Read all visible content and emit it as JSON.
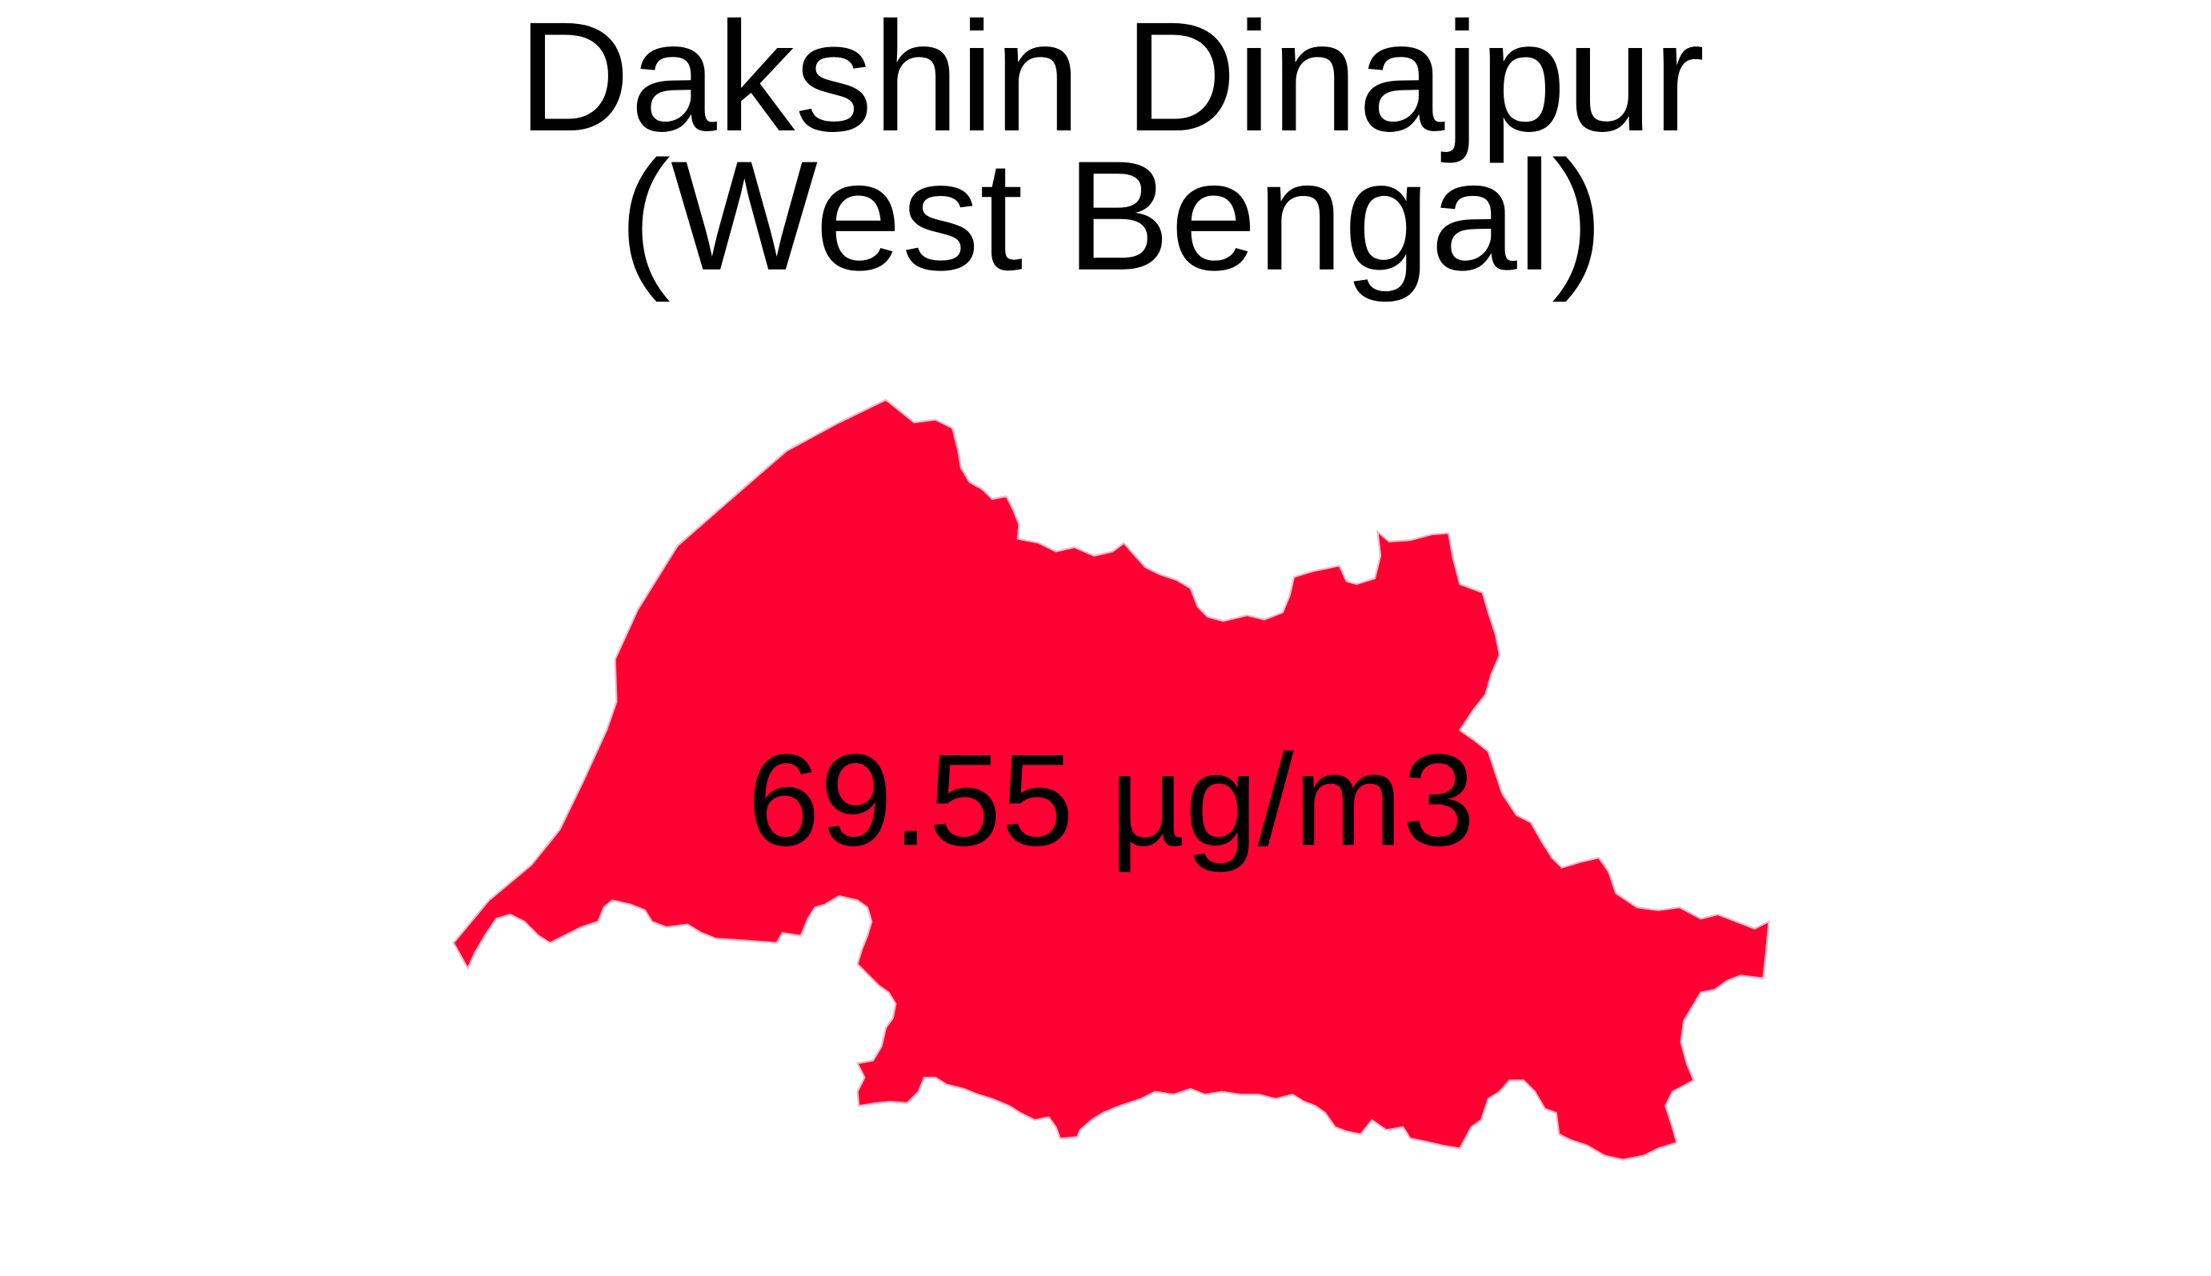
{
  "map": {
    "title_line1": "Dakshin Dinajpur",
    "title_line2": "(West Bengal)",
    "region_name": "Dakshin Dinajpur",
    "state": "West Bengal",
    "value_label": "69.55 µg/m3",
    "value": 69.55,
    "unit": "µg/m3",
    "fill_color": "#FF0033",
    "border_color": "#F2B8C6",
    "background_color": "#FFFFFF"
  }
}
